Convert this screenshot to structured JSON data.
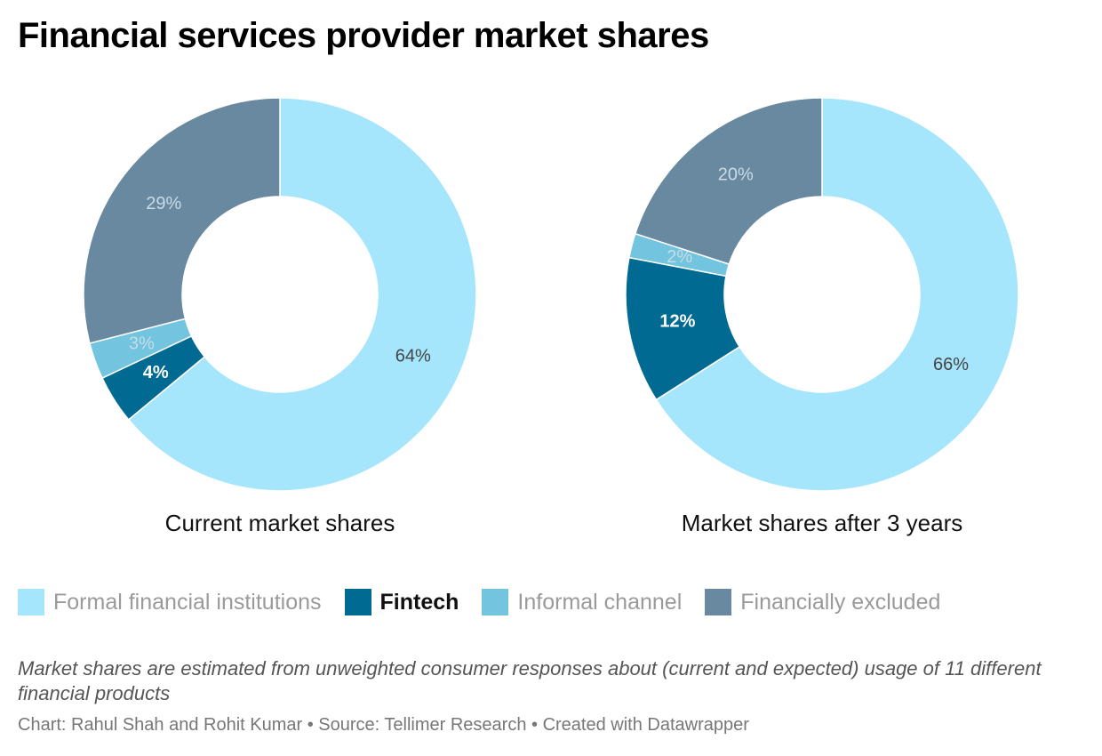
{
  "title": "Financial services provider market shares",
  "chart_data": {
    "type": "pie",
    "categories": [
      "Formal financial institutions",
      "Fintech",
      "Informal channel",
      "Financially excluded"
    ],
    "colors": {
      "Formal financial institutions": "#a6e6fc",
      "Fintech": "#006a93",
      "Informal channel": "#72c4df",
      "Financially excluded": "#6889a0"
    },
    "charts": [
      {
        "label": "Current market shares",
        "slices": [
          {
            "name": "Formal financial institutions",
            "value": 64,
            "label": "64%"
          },
          {
            "name": "Fintech",
            "value": 4,
            "label": "4%"
          },
          {
            "name": "Informal channel",
            "value": 3,
            "label": "3%"
          },
          {
            "name": "Financially excluded",
            "value": 29,
            "label": "29%"
          }
        ]
      },
      {
        "label": "Market shares after 3 years",
        "slices": [
          {
            "name": "Formal financial institutions",
            "value": 66,
            "label": "66%"
          },
          {
            "name": "Fintech",
            "value": 12,
            "label": "12%"
          },
          {
            "name": "Informal channel",
            "value": 2,
            "label": "2%"
          },
          {
            "name": "Financially excluded",
            "value": 20,
            "label": "20%"
          }
        ]
      }
    ],
    "legend_placement": "bottom"
  },
  "legend": [
    {
      "label": "Formal financial institutions",
      "color": "#a6e6fc",
      "highlight": false
    },
    {
      "label": "Fintech",
      "color": "#006a93",
      "highlight": true
    },
    {
      "label": "Informal channel",
      "color": "#72c4df",
      "highlight": false
    },
    {
      "label": "Financially excluded",
      "color": "#6889a0",
      "highlight": false
    }
  ],
  "note": "Market shares are estimated from unweighted consumer responses about (current and expected) usage of 11 different financial products",
  "credits": "Chart: Rahul Shah and Rohit Kumar • Source: Tellimer Research • Created with Datawrapper"
}
